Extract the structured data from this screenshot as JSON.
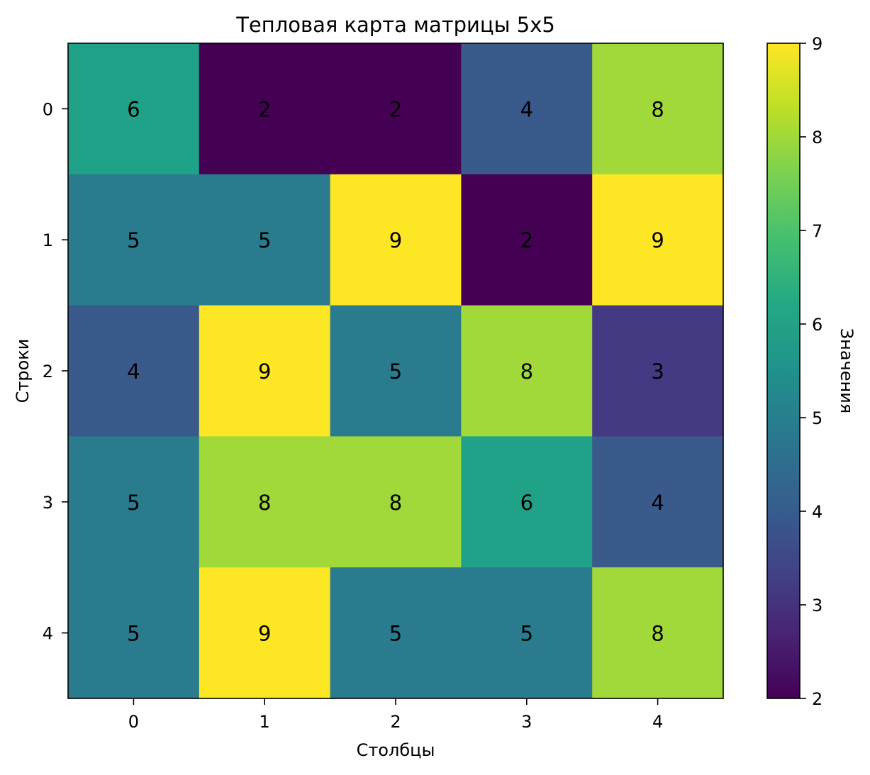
{
  "chart_data": {
    "type": "heatmap",
    "title": "Тепловая карта матрицы 5x5",
    "xlabel": "Столбцы",
    "ylabel": "Строки",
    "x_ticks": [
      "0",
      "1",
      "2",
      "3",
      "4"
    ],
    "y_ticks": [
      "0",
      "1",
      "2",
      "3",
      "4"
    ],
    "values": [
      [
        6,
        2,
        2,
        4,
        8
      ],
      [
        5,
        5,
        9,
        2,
        9
      ],
      [
        4,
        9,
        5,
        8,
        3
      ],
      [
        5,
        8,
        8,
        6,
        4
      ],
      [
        5,
        9,
        5,
        5,
        8
      ]
    ],
    "colormap": "viridis",
    "vmin": 2,
    "vmax": 9,
    "colorbar": {
      "label": "Значения",
      "ticks": [
        "2",
        "3",
        "4",
        "5",
        "6",
        "7",
        "8",
        "9"
      ],
      "placement": "right"
    },
    "colors": {
      "2": "#440154",
      "3": "#443983",
      "4": "#3b5a8c",
      "5": "#2a7b8d",
      "6": "#1fa287",
      "7": "#4ec36b",
      "8": "#a2d93a",
      "9": "#fde725"
    }
  }
}
